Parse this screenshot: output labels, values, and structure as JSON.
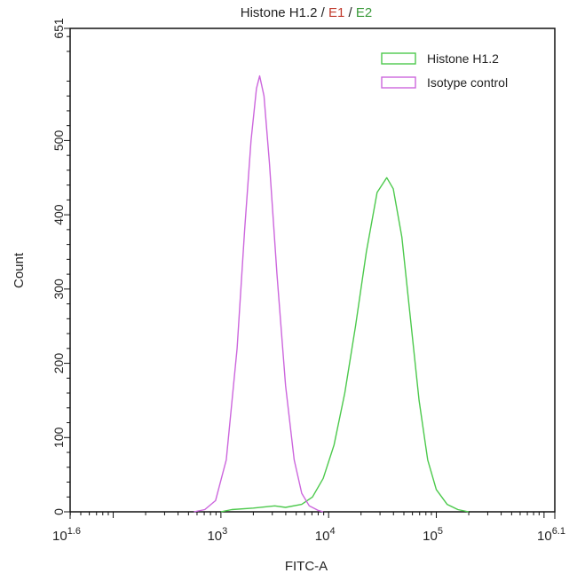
{
  "chart_data": {
    "type": "line",
    "title_parts": [
      {
        "text": "Histone H1.2",
        "color": "#222222"
      },
      {
        "text": " / ",
        "color": "#222222"
      },
      {
        "text": "E1",
        "color": "#c0392b"
      },
      {
        "text": " / ",
        "color": "#222222"
      },
      {
        "text": "E2",
        "color": "#3a9a3a"
      }
    ],
    "xlabel": "FITC-A",
    "ylabel": "Count",
    "xscale": "log",
    "xlim_log10": [
      1.6,
      6.1
    ],
    "ylim": [
      0,
      651
    ],
    "x_tick_labels": [
      {
        "base": "10",
        "exp": "1.6"
      },
      {
        "base": "10",
        "exp": "3"
      },
      {
        "base": "10",
        "exp": "4"
      },
      {
        "base": "10",
        "exp": "5"
      },
      {
        "base": "10",
        "exp": "6.1"
      }
    ],
    "y_ticks": [
      "0",
      "100",
      "200",
      "300",
      "400",
      "500",
      "651"
    ],
    "grid": false,
    "legend_position": "top-right",
    "series": [
      {
        "name": "Histone H1.2",
        "color": "#4cc94c",
        "x": [
          1000,
          1259,
          1995,
          3162,
          3981,
          5623,
          7079,
          8913,
          11220,
          14125,
          17783,
          22387,
          28184,
          34674,
          39811,
          47863,
          57544,
          69183,
          83176,
          100000,
          125893,
          158489,
          199526
        ],
        "y": [
          0,
          3,
          5,
          8,
          6,
          10,
          20,
          45,
          90,
          160,
          250,
          350,
          430,
          450,
          435,
          370,
          260,
          150,
          70,
          30,
          10,
          3,
          0
        ]
      },
      {
        "name": "Isotype control",
        "color": "#cc66dd",
        "x": [
          562,
          708,
          891,
          1122,
          1413,
          1660,
          1905,
          2138,
          2291,
          2512,
          2818,
          3311,
          3981,
          4786,
          5623,
          6607,
          7943,
          8913
        ],
        "y": [
          0,
          3,
          15,
          70,
          220,
          380,
          500,
          570,
          587,
          560,
          470,
          320,
          170,
          70,
          25,
          8,
          2,
          0
        ]
      }
    ]
  }
}
